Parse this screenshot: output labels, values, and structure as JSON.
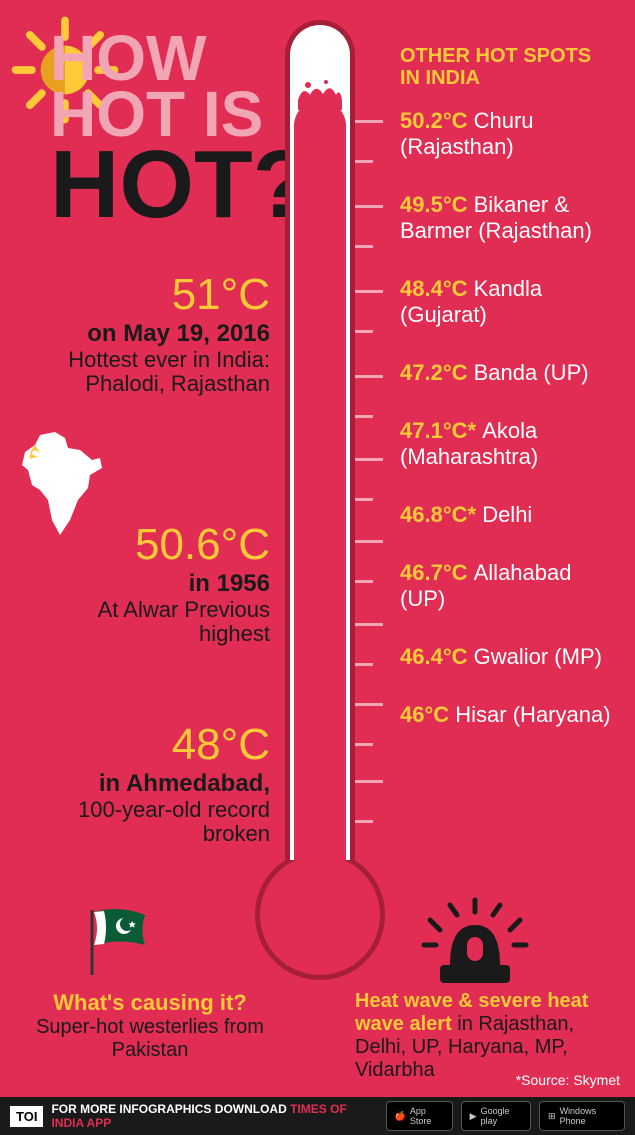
{
  "title": {
    "line1": "HOW",
    "line2": "HOT IS",
    "line3": "HOT?"
  },
  "record": {
    "temp": "51°C",
    "date": "on May 19, 2016",
    "desc": "Hottest ever in India: Phalodi, Rajasthan"
  },
  "previous": {
    "temp": "50.6°C",
    "year": "in 1956",
    "desc": "At Alwar Previous highest"
  },
  "ahmedabad": {
    "temp": "48°C",
    "loc": "in Ahmedabad,",
    "desc": "100-year-old record broken"
  },
  "hotspots_title": "OTHER HOT SPOTS IN INDIA",
  "spots": [
    {
      "temp": "50.2°C",
      "place": "Churu (Rajasthan)"
    },
    {
      "temp": "49.5°C",
      "place": "Bikaner & Barmer (Rajasthan)"
    },
    {
      "temp": "48.4°C",
      "place": "Kandla (Gujarat)"
    },
    {
      "temp": "47.2°C",
      "place": "Banda (UP)"
    },
    {
      "temp": "47.1°C*",
      "place": "Akola (Maharashtra)"
    },
    {
      "temp": "46.8°C*",
      "place": "Delhi"
    },
    {
      "temp": "46.7°C",
      "place": "Allahabad (UP)"
    },
    {
      "temp": "46.4°C",
      "place": "Gwalior (MP)"
    },
    {
      "temp": "46°C",
      "place": "Hisar (Haryana)"
    }
  ],
  "thermo": {
    "fill_pct": 91
  },
  "ticks_top": [
    120,
    205,
    290,
    375,
    458,
    540,
    623,
    703,
    780
  ],
  "cause": {
    "q": "What's causing it?",
    "a": "Super-hot westerlies from Pakistan"
  },
  "alert": {
    "head": "Heat wave & severe heat wave alert",
    "text": " in Rajasthan, Delhi, UP, Haryana, MP, Vidarbha"
  },
  "source": "*Source: Skymet",
  "footer": {
    "toi": "TOI",
    "text1": "FOR MORE  INFOGRAPHICS DOWNLOAD ",
    "text2": "TIMES OF INDIA  APP",
    "badges": [
      "App Store",
      "Google play",
      "Windows Phone"
    ]
  },
  "colors": {
    "bg": "#e12d53",
    "gold": "#ffc938",
    "pink": "#f2a5b4",
    "dark": "#1a1a1a",
    "tube_border": "#a61e38"
  }
}
